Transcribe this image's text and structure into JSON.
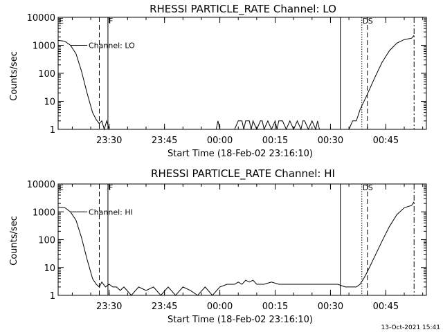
{
  "footer": {
    "date_stamp": "13-Oct-2021 15:41"
  },
  "colors": {
    "background": "#ffffff",
    "foreground": "#000000"
  },
  "chart_data": [
    {
      "type": "line",
      "title": "RHESSI PARTICLE_RATE Channel: LO",
      "xlabel": "Start Time (18-Feb-02 23:16:10)",
      "ylabel": "Counts/sec",
      "yscale": "log",
      "ylim": [
        1,
        10000
      ],
      "xlim": [
        "23:16:10",
        "00:56:00"
      ],
      "x_ticks": [
        "23:30",
        "23:45",
        "00:00",
        "00:15",
        "00:30",
        "00:45"
      ],
      "y_ticks": [
        "1",
        "10",
        "100",
        "1000",
        "10000"
      ],
      "legend": {
        "position": "top-left",
        "entries": [
          "Channel: LO"
        ]
      },
      "markers": [
        {
          "label": "E",
          "time": "23:16:10",
          "style": "none"
        },
        {
          "label": "",
          "time": "23:27:20",
          "style": "dashed"
        },
        {
          "label": "F",
          "time": "23:29:40",
          "style": "solid"
        },
        {
          "label": "",
          "time": "00:32:40",
          "style": "solid"
        },
        {
          "label": "D",
          "time": "00:38:30",
          "style": "dotted"
        },
        {
          "label": "S",
          "time": "00:40:00",
          "style": "dashed"
        },
        {
          "label": "",
          "time": "00:52:40",
          "style": "dashdot"
        }
      ],
      "series": [
        {
          "name": "Channel: LO",
          "x": [
            "23:16:10",
            "23:18:00",
            "23:19:30",
            "23:21:00",
            "23:22:30",
            "23:24:00",
            "23:25:30",
            "23:26:30",
            "23:27:20",
            "23:28:00",
            "23:28:40",
            "23:29:20",
            "23:30:00",
            "23:35:00",
            "23:50:00",
            "23:59:00",
            "23:59:30",
            "24:00:00",
            "24:03:00",
            "24:04:00",
            "24:05:00",
            "24:06:00",
            "24:06:30",
            "24:07:00",
            "24:08:00",
            "24:08:30",
            "24:09:00",
            "24:10:00",
            "24:11:00",
            "24:11:30",
            "24:12:00",
            "24:13:00",
            "24:14:00",
            "24:15:00",
            "24:15:30",
            "24:16:00",
            "24:17:00",
            "24:18:00",
            "24:19:00",
            "24:20:00",
            "24:21:00",
            "24:22:00",
            "24:22:30",
            "24:23:00",
            "24:24:00",
            "24:25:00",
            "24:26:00",
            "24:26:30",
            "24:27:00",
            "24:35:00",
            "24:36:00",
            "24:37:00",
            "24:38:00",
            "24:40:00",
            "24:42:00",
            "24:44:00",
            "24:46:00",
            "24:48:00",
            "24:50:00",
            "24:52:00",
            "24:52:40"
          ],
          "values": [
            1500,
            1400,
            1000,
            500,
            120,
            20,
            4,
            2.2,
            1.6,
            2,
            1,
            2,
            1,
            1,
            1,
            1,
            2,
            1,
            1,
            1,
            2,
            2,
            1,
            2,
            2,
            1,
            2,
            1,
            2,
            2,
            1,
            2,
            1,
            2,
            1,
            2,
            2,
            1,
            2,
            1,
            2,
            1,
            2,
            2,
            1,
            2,
            1,
            2,
            1,
            1,
            2,
            2,
            5,
            18,
            70,
            250,
            650,
            1200,
            1600,
            1800,
            2300
          ]
        }
      ]
    },
    {
      "type": "line",
      "title": "RHESSI PARTICLE_RATE Channel: HI",
      "xlabel": "Start Time (18-Feb-02 23:16:10)",
      "ylabel": "Counts/sec",
      "yscale": "log",
      "ylim": [
        1,
        10000
      ],
      "xlim": [
        "23:16:10",
        "00:56:00"
      ],
      "x_ticks": [
        "23:30",
        "23:45",
        "00:00",
        "00:15",
        "00:30",
        "00:45"
      ],
      "y_ticks": [
        "1",
        "10",
        "100",
        "1000",
        "10000"
      ],
      "legend": {
        "position": "top-left",
        "entries": [
          "Channel: HI"
        ]
      },
      "markers": [
        {
          "label": "E",
          "time": "23:16:10",
          "style": "none"
        },
        {
          "label": "",
          "time": "23:27:20",
          "style": "dashed"
        },
        {
          "label": "F",
          "time": "23:29:40",
          "style": "solid"
        },
        {
          "label": "",
          "time": "00:32:40",
          "style": "solid"
        },
        {
          "label": "D",
          "time": "00:38:30",
          "style": "dotted"
        },
        {
          "label": "S",
          "time": "00:40:00",
          "style": "dashed"
        },
        {
          "label": "",
          "time": "00:52:40",
          "style": "dashdot"
        }
      ],
      "series": [
        {
          "name": "Channel: HI",
          "x": [
            "23:16:10",
            "23:18:00",
            "23:19:30",
            "23:21:00",
            "23:22:30",
            "23:24:00",
            "23:25:30",
            "23:26:30",
            "23:27:20",
            "23:28:00",
            "23:29:00",
            "23:30:00",
            "23:31:00",
            "23:32:00",
            "23:33:00",
            "23:34:00",
            "23:36:00",
            "23:38:00",
            "23:40:00",
            "23:42:00",
            "23:44:00",
            "23:46:00",
            "23:48:00",
            "23:50:00",
            "23:52:00",
            "23:54:00",
            "23:56:00",
            "23:58:00",
            "24:00:00",
            "24:02:00",
            "24:04:00",
            "24:05:00",
            "24:06:00",
            "24:07:00",
            "24:08:00",
            "24:09:00",
            "24:10:00",
            "24:12:00",
            "24:14:00",
            "24:16:00",
            "24:18:00",
            "24:20:00",
            "24:22:00",
            "24:24:00",
            "24:26:00",
            "24:28:00",
            "24:30:00",
            "24:32:00",
            "24:34:00",
            "24:36:00",
            "24:37:00",
            "24:38:00",
            "24:39:00",
            "24:40:00",
            "24:42:00",
            "24:44:00",
            "24:46:00",
            "24:48:00",
            "24:50:00",
            "24:52:00",
            "24:52:40"
          ],
          "values": [
            1500,
            1400,
            1000,
            500,
            120,
            20,
            4,
            2.5,
            2,
            3,
            2,
            2.5,
            2,
            2,
            1.5,
            2,
            1,
            2,
            1.5,
            2,
            1,
            2,
            1,
            2,
            1.5,
            1,
            2,
            1,
            2,
            2.5,
            2.5,
            3,
            2.5,
            3.5,
            3,
            3.5,
            2.5,
            2.5,
            3,
            2.5,
            2.5,
            2.5,
            2.5,
            2.5,
            2.5,
            2.5,
            2.5,
            2.5,
            2,
            2,
            2,
            2.5,
            4,
            7,
            25,
            90,
            300,
            800,
            1400,
            1700,
            2300
          ]
        }
      ]
    }
  ]
}
